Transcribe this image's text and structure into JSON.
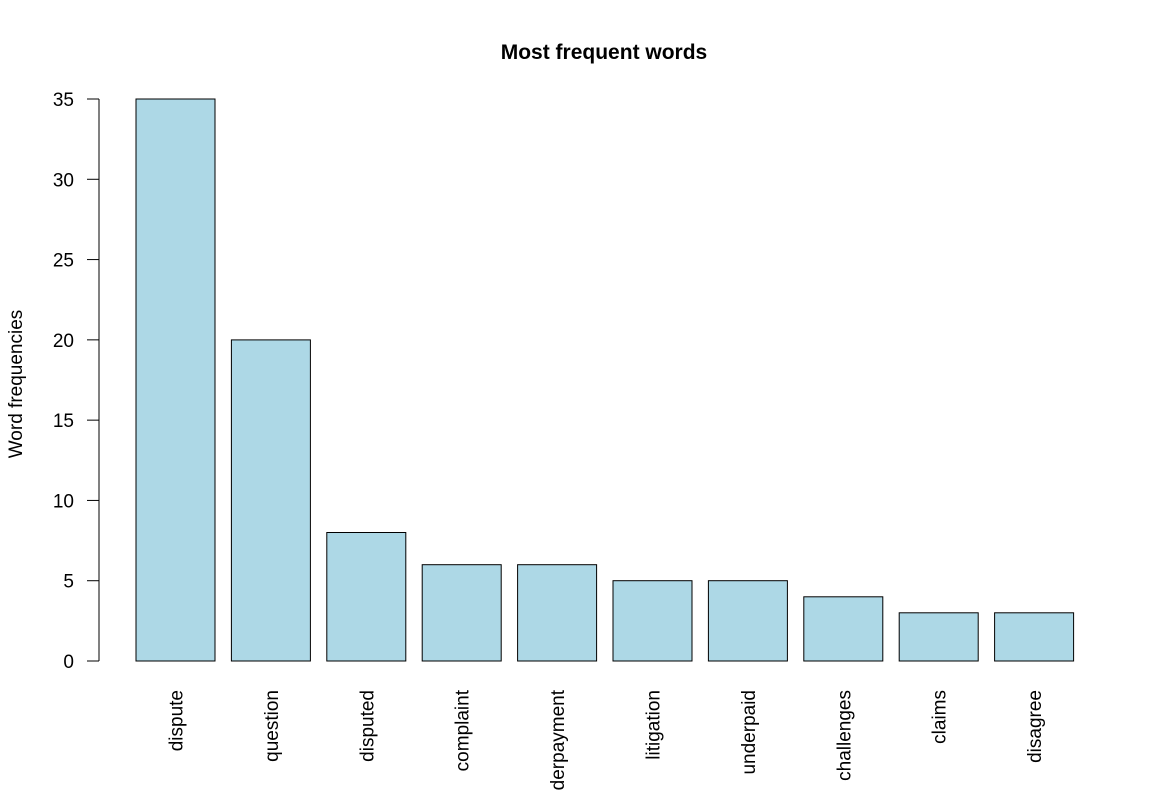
{
  "chart_data": {
    "type": "bar",
    "title": "Most frequent words",
    "xlabel": "",
    "ylabel": "Word frequencies",
    "categories": [
      "dispute",
      "question",
      "disputed",
      "complaint",
      "underpayment",
      "litigation",
      "underpaid",
      "challenges",
      "claims",
      "disagree"
    ],
    "values": [
      35,
      20,
      8,
      6,
      6,
      5,
      5,
      4,
      3,
      3
    ],
    "ylim": [
      0,
      35
    ],
    "yticks": [
      0,
      5,
      10,
      15,
      20,
      25,
      30,
      35
    ],
    "grid": false,
    "legend": "none",
    "bar_color": "#add8e6",
    "bar_border_color": "#000000"
  }
}
